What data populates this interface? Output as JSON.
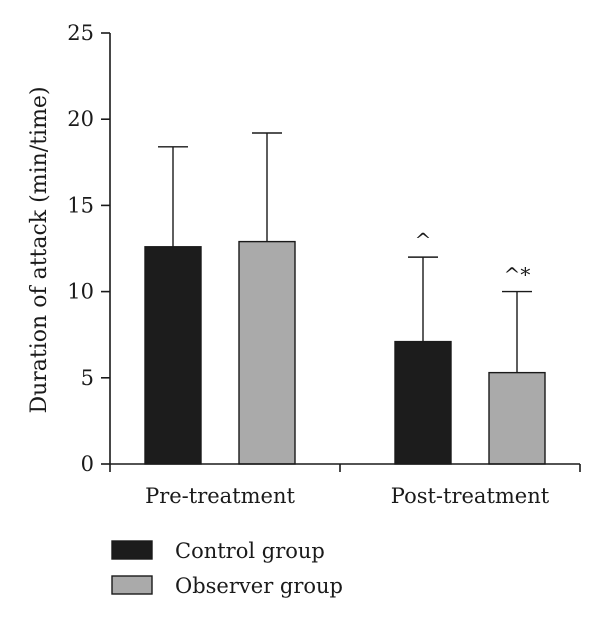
{
  "chart_data": {
    "type": "bar",
    "ylabel": "Duration of attack (min/time)",
    "xlabel": "",
    "ylim": [
      0,
      25
    ],
    "yticks": [
      "0",
      "5",
      "10",
      "15",
      "20",
      "25"
    ],
    "categories": [
      "Pre-treatment",
      "Post-treatment"
    ],
    "series": [
      {
        "name": "Control group",
        "color": "#1c1c1c",
        "values": [
          12.6,
          7.1
        ],
        "errors": [
          5.8,
          4.9
        ],
        "annotations": [
          "",
          "^"
        ]
      },
      {
        "name": "Observer group",
        "color": "#aaaaaa",
        "values": [
          12.9,
          5.3
        ],
        "errors": [
          6.3,
          4.7
        ],
        "annotations": [
          "",
          "^*"
        ]
      }
    ],
    "grid": false,
    "legend_position": "bottom-left"
  }
}
